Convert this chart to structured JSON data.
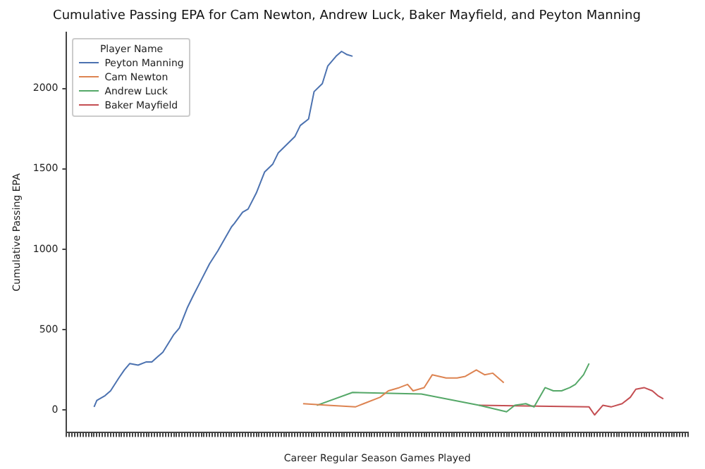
{
  "chart_data": {
    "type": "line",
    "title": "Cumulative Passing EPA for Cam Newton, Andrew Luck, Baker Mayfield, and Peyton Manning",
    "xlabel": "Career Regular Season Games Played",
    "ylabel": "Cumulative Passing EPA",
    "legend_title": "Player Name",
    "legend": "top left",
    "grid": false,
    "ylim": [
      -140,
      2350
    ],
    "yticks": [
      0,
      500,
      1000,
      1500,
      2000
    ],
    "categories": [
      null,
      null,
      null,
      null,
      null,
      null,
      null,
      null,
      null,
      null,
      null,
      null,
      null,
      null,
      null,
      null,
      null,
      null,
      null,
      null,
      null,
      null,
      null,
      null,
      null,
      null,
      null,
      null,
      null,
      null,
      null,
      null,
      null,
      null,
      null,
      null,
      null,
      null,
      null,
      null,
      null,
      null,
      null,
      null,
      null,
      null,
      null,
      null,
      null,
      null,
      null,
      null,
      null,
      null,
      null,
      null,
      null,
      null,
      null,
      null,
      null,
      null,
      null,
      null,
      null,
      null,
      null,
      null,
      null,
      null,
      null,
      null,
      null,
      null,
      null,
      null,
      null,
      null,
      null,
      null,
      null,
      null,
      null,
      null,
      null,
      null,
      null,
      null,
      null,
      null,
      null,
      null,
      null,
      null,
      null,
      null,
      null,
      null,
      null,
      null,
      null,
      null,
      null,
      null,
      null,
      null,
      null,
      null,
      null,
      null,
      null,
      null,
      null,
      null,
      null,
      null,
      null,
      null,
      null,
      null,
      null,
      null,
      null,
      null,
      null,
      null,
      null,
      null,
      null,
      null,
      null,
      null,
      null,
      null,
      null,
      null,
      null,
      null,
      null,
      null,
      null,
      null,
      null,
      null,
      null,
      null,
      null,
      null,
      null,
      null,
      null,
      null,
      null,
      null,
      null,
      null,
      null,
      null,
      null,
      null,
      null,
      null,
      null,
      null,
      null,
      null,
      null,
      null,
      null,
      null,
      null,
      null,
      null,
      null,
      null,
      null,
      null,
      null,
      null,
      null,
      null,
      null,
      null,
      null,
      null,
      null,
      null,
      null,
      null,
      null,
      null,
      null,
      null,
      null,
      null,
      null,
      null,
      null,
      null,
      null,
      null,
      null,
      null,
      null,
      null,
      null,
      null,
      null,
      null,
      null,
      null,
      null,
      null,
      null,
      null,
      null,
      null,
      null,
      null,
      null,
      null,
      null,
      null,
      null,
      null,
      null,
      null
    ],
    "series": [
      {
        "name": "Peyton Manning",
        "color": "#4c72b0",
        "values": [
          null,
          null,
          null,
          null,
          null,
          null,
          null,
          null,
          null,
          null,
          20,
          60,
          null,
          null,
          90,
          null,
          120,
          null,
          null,
          200,
          null,
          250,
          null,
          290,
          null,
          null,
          280,
          null,
          null,
          300,
          null,
          300,
          null,
          330,
          null,
          360,
          null,
          null,
          null,
          470,
          null,
          510,
          null,
          null,
          640,
          null,
          710,
          null,
          null,
          810,
          null,
          null,
          910,
          null,
          null,
          990,
          null,
          1050,
          null,
          null,
          1140,
          1160,
          null,
          null,
          1230,
          null,
          1250,
          null,
          null,
          1350,
          null,
          null,
          1480,
          null,
          null,
          1530,
          null,
          1600,
          null,
          null,
          1650,
          null,
          null,
          1700,
          null,
          1770,
          null,
          null,
          1810,
          null,
          1980,
          null,
          null,
          2030,
          null,
          2140,
          null,
          null,
          2200,
          null,
          2230,
          null,
          2210,
          null,
          2200,
          null,
          null,
          null,
          null,
          null,
          null,
          null,
          null,
          null,
          null,
          null,
          null,
          null,
          null,
          null,
          null,
          null,
          null,
          null,
          null,
          null,
          null,
          null,
          null,
          null,
          null,
          null,
          null,
          null,
          null,
          null,
          null,
          null,
          null,
          null,
          null,
          null,
          null,
          null,
          null,
          null,
          null,
          null,
          null,
          null,
          null,
          null,
          null,
          null,
          null,
          null,
          null,
          null,
          null,
          null,
          null,
          null,
          null,
          null,
          null,
          null,
          null,
          null,
          null,
          null,
          null,
          null,
          null,
          null,
          null,
          null,
          null,
          null,
          null,
          null,
          null,
          null,
          null,
          null,
          null,
          null,
          null,
          null,
          null,
          null,
          null,
          null,
          null,
          null,
          null,
          null,
          null,
          null,
          null,
          null,
          null,
          null,
          null,
          null,
          null,
          null,
          null,
          null,
          null,
          null,
          null,
          null,
          null,
          null,
          null,
          null,
          null,
          null,
          null,
          null,
          null,
          null,
          null,
          null,
          null,
          null,
          null
        ]
      },
      {
        "name": "Cam Newton",
        "color": "#dd8452",
        "values": [
          null,
          null,
          null,
          null,
          null,
          null,
          null,
          null,
          null,
          null,
          null,
          null,
          null,
          null,
          null,
          null,
          null,
          null,
          null,
          null,
          null,
          null,
          null,
          null,
          null,
          null,
          null,
          null,
          null,
          null,
          null,
          null,
          null,
          null,
          null,
          null,
          null,
          null,
          null,
          null,
          null,
          null,
          null,
          null,
          null,
          null,
          null,
          null,
          null,
          null,
          null,
          null,
          null,
          null,
          null,
          null,
          null,
          null,
          null,
          null,
          null,
          null,
          null,
          null,
          null,
          null,
          null,
          null,
          null,
          null,
          null,
          null,
          null,
          null,
          null,
          null,
          null,
          null,
          null,
          null,
          null,
          null,
          null,
          null,
          null,
          null,
          40,
          null,
          null,
          null,
          null,
          null,
          null,
          null,
          null,
          30,
          null,
          null,
          null,
          null,
          null,
          null,
          null,
          null,
          null,
          20,
          null,
          null,
          40,
          null,
          null,
          null,
          null,
          null,
          80,
          null,
          null,
          120,
          null,
          null,
          null,
          140,
          null,
          null,
          160,
          null,
          120,
          null,
          null,
          null,
          140,
          null,
          null,
          220,
          null,
          null,
          null,
          null,
          200,
          null,
          null,
          null,
          200,
          null,
          null,
          210,
          null,
          null,
          null,
          250,
          null,
          null,
          220,
          null,
          null,
          230,
          null,
          null,
          null,
          170,
          null,
          null,
          null,
          null,
          null,
          null,
          null,
          null,
          null,
          null,
          null,
          null,
          null,
          null,
          null,
          null,
          null,
          null,
          null,
          null,
          null,
          null,
          null,
          null,
          null,
          null,
          null,
          null,
          null,
          null,
          null,
          null,
          null,
          null,
          null,
          null,
          null,
          null,
          null,
          null,
          null,
          null,
          null,
          null,
          null,
          null,
          null,
          null,
          null,
          null,
          null,
          null,
          null,
          null,
          null,
          null,
          null,
          null,
          null,
          null,
          null,
          null,
          null,
          null,
          null,
          null,
          null
        ]
      },
      {
        "name": "Andrew Luck",
        "color": "#55a868",
        "values": [
          null,
          null,
          null,
          null,
          null,
          null,
          null,
          null,
          null,
          null,
          null,
          null,
          null,
          null,
          null,
          null,
          null,
          null,
          null,
          null,
          null,
          null,
          null,
          null,
          null,
          null,
          null,
          null,
          null,
          null,
          null,
          null,
          null,
          null,
          null,
          null,
          null,
          null,
          null,
          null,
          null,
          null,
          null,
          null,
          null,
          null,
          null,
          null,
          null,
          null,
          null,
          null,
          null,
          null,
          null,
          null,
          null,
          null,
          null,
          null,
          null,
          null,
          null,
          null,
          null,
          null,
          null,
          null,
          null,
          null,
          null,
          null,
          null,
          null,
          null,
          null,
          null,
          null,
          null,
          null,
          null,
          null,
          null,
          null,
          null,
          null,
          null,
          null,
          null,
          null,
          null,
          30,
          null,
          null,
          null,
          null,
          null,
          null,
          null,
          null,
          null,
          null,
          null,
          null,
          110,
          null,
          null,
          null,
          null,
          null,
          null,
          null,
          null,
          null,
          null,
          null,
          null,
          null,
          null,
          null,
          null,
          null,
          null,
          null,
          null,
          null,
          null,
          null,
          null,
          100,
          null,
          null,
          null,
          null,
          null,
          null,
          null,
          null,
          null,
          null,
          null,
          null,
          null,
          null,
          null,
          null,
          null,
          null,
          null,
          null,
          30,
          null,
          null,
          null,
          null,
          null,
          null,
          null,
          null,
          null,
          -10,
          null,
          null,
          30,
          null,
          null,
          null,
          40,
          null,
          null,
          20,
          null,
          null,
          null,
          140,
          null,
          null,
          120,
          null,
          null,
          120,
          null,
          null,
          140,
          null,
          160,
          null,
          null,
          220,
          null,
          290,
          null,
          null,
          null,
          null,
          null,
          null,
          null,
          null,
          null,
          null,
          null,
          null,
          null,
          null,
          null,
          null,
          null,
          null,
          null,
          null,
          null,
          null,
          null,
          null,
          null,
          null,
          null,
          null,
          null,
          null,
          null,
          null,
          null,
          null,
          null,
          null
        ]
      },
      {
        "name": "Baker Mayfield",
        "color": "#c44e52",
        "values": [
          null,
          null,
          null,
          null,
          null,
          null,
          null,
          null,
          null,
          null,
          null,
          null,
          null,
          null,
          null,
          null,
          null,
          null,
          null,
          null,
          null,
          null,
          null,
          null,
          null,
          null,
          null,
          null,
          null,
          null,
          null,
          null,
          null,
          null,
          null,
          null,
          null,
          null,
          null,
          null,
          null,
          null,
          null,
          null,
          null,
          null,
          null,
          null,
          null,
          null,
          null,
          null,
          null,
          null,
          null,
          null,
          null,
          null,
          null,
          null,
          null,
          null,
          null,
          null,
          null,
          null,
          null,
          null,
          null,
          null,
          null,
          null,
          null,
          null,
          null,
          null,
          null,
          null,
          null,
          null,
          null,
          null,
          null,
          null,
          null,
          null,
          null,
          null,
          null,
          null,
          null,
          null,
          null,
          null,
          null,
          null,
          null,
          null,
          null,
          null,
          null,
          null,
          null,
          null,
          null,
          null,
          null,
          null,
          null,
          null,
          null,
          null,
          null,
          null,
          null,
          null,
          null,
          null,
          null,
          null,
          null,
          null,
          null,
          null,
          null,
          null,
          null,
          null,
          null,
          null,
          null,
          null,
          null,
          null,
          null,
          null,
          null,
          null,
          null,
          null,
          null,
          null,
          null,
          null,
          null,
          null,
          null,
          null,
          null,
          null,
          30,
          null,
          null,
          null,
          null,
          null,
          null,
          null,
          null,
          null,
          null,
          null,
          null,
          null,
          null,
          null,
          null,
          null,
          null,
          null,
          null,
          null,
          null,
          null,
          null,
          null,
          null,
          null,
          null,
          null,
          null,
          null,
          null,
          null,
          null,
          null,
          null,
          null,
          null,
          null,
          20,
          null,
          -30,
          null,
          null,
          30,
          null,
          null,
          20,
          null,
          null,
          null,
          40,
          null,
          null,
          80,
          null,
          130,
          null,
          null,
          140,
          null,
          null,
          120,
          null,
          90,
          null,
          70,
          null,
          null,
          null,
          null,
          null,
          null,
          null,
          null,
          null
        ]
      }
    ]
  }
}
